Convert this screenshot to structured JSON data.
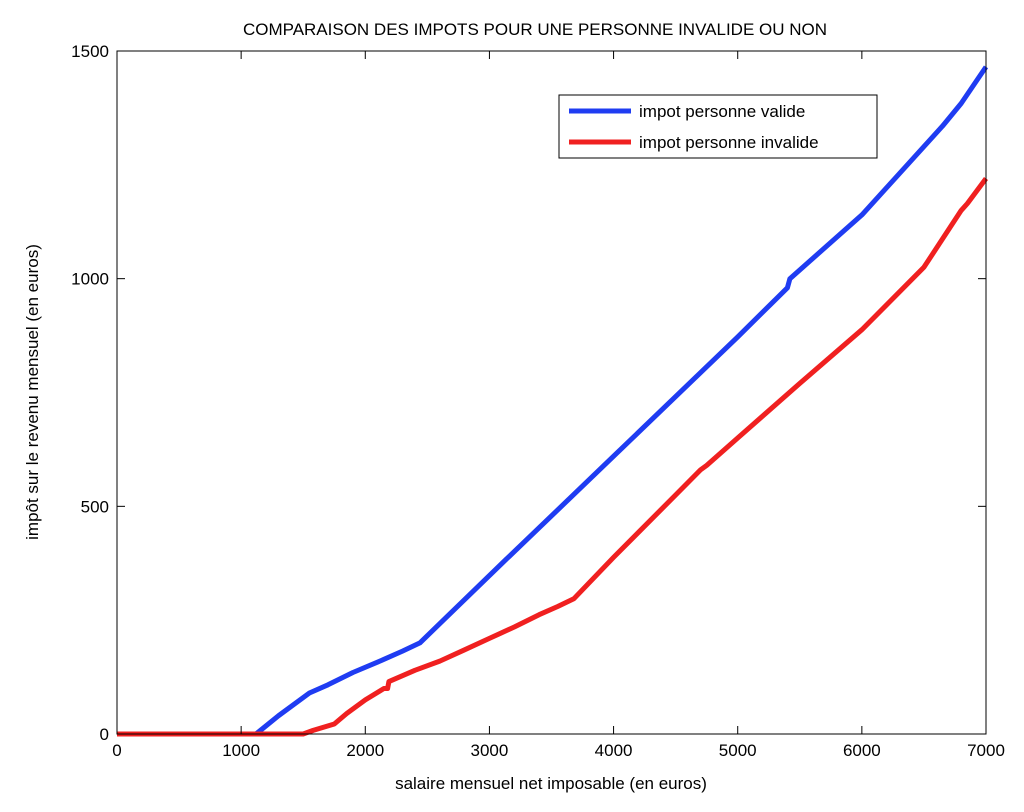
{
  "chart_data": {
    "type": "line",
    "title": "COMPARAISON DES IMPOTS POUR UNE PERSONNE INVALIDE OU NON",
    "xlabel": "salaire mensuel net imposable (en euros)",
    "ylabel": "impôt sur le revenu mensuel (en euros)",
    "xlim": [
      0,
      7000
    ],
    "ylim": [
      0,
      1500
    ],
    "xticks": [
      0,
      1000,
      2000,
      3000,
      4000,
      5000,
      6000,
      7000
    ],
    "yticks": [
      0,
      500,
      1000,
      1500
    ],
    "grid": false,
    "legend_position": "top-right",
    "series": [
      {
        "name": "impot personne valide",
        "color": "#1f3cf2",
        "points": [
          [
            0,
            0
          ],
          [
            1120,
            0
          ],
          [
            1300,
            40
          ],
          [
            1550,
            90
          ],
          [
            1700,
            108
          ],
          [
            1900,
            135
          ],
          [
            2100,
            158
          ],
          [
            2300,
            182
          ],
          [
            2440,
            200
          ],
          [
            3140,
            385
          ],
          [
            3160,
            390
          ],
          [
            4000,
            610
          ],
          [
            5000,
            872
          ],
          [
            5400,
            980
          ],
          [
            5420,
            1000
          ],
          [
            6000,
            1140
          ],
          [
            6650,
            1335
          ],
          [
            6800,
            1385
          ],
          [
            7000,
            1465
          ]
        ]
      },
      {
        "name": "impot personne invalide",
        "color": "#f02020",
        "points": [
          [
            0,
            0
          ],
          [
            1500,
            0
          ],
          [
            1580,
            8
          ],
          [
            1750,
            22
          ],
          [
            1850,
            45
          ],
          [
            2000,
            75
          ],
          [
            2150,
            100
          ],
          [
            2180,
            100
          ],
          [
            2190,
            115
          ],
          [
            2400,
            140
          ],
          [
            2600,
            160
          ],
          [
            2800,
            185
          ],
          [
            3000,
            210
          ],
          [
            3200,
            235
          ],
          [
            3400,
            262
          ],
          [
            3550,
            280
          ],
          [
            3680,
            297
          ],
          [
            4000,
            388
          ],
          [
            4500,
            525
          ],
          [
            4700,
            580
          ],
          [
            4750,
            590
          ],
          [
            5000,
            650
          ],
          [
            5500,
            770
          ],
          [
            6000,
            888
          ],
          [
            6500,
            1025
          ],
          [
            6800,
            1150
          ],
          [
            6850,
            1165
          ],
          [
            7000,
            1220
          ]
        ]
      }
    ]
  }
}
